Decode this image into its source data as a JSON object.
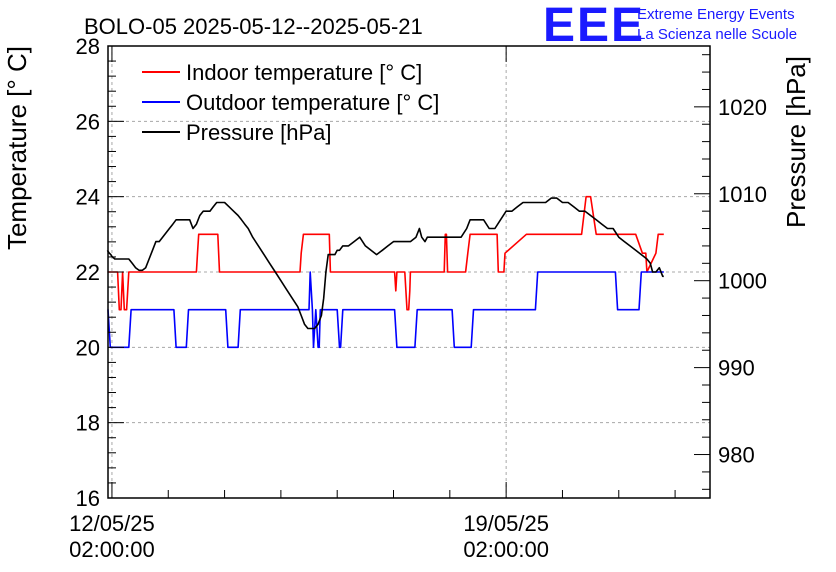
{
  "chart_data": {
    "type": "line",
    "title": "BOLO-05 2025-05-12--2025-05-21",
    "ylabel": "Temperature [° C]",
    "y2label": "Pressure [hPa]",
    "ylim": [
      16,
      28
    ],
    "y2lim": [
      975,
      1027
    ],
    "xlim": [
      -0.07,
      10.62
    ],
    "yticks": [
      "16",
      "18",
      "20",
      "22",
      "24",
      "26",
      "28"
    ],
    "y2ticks": [
      "980",
      "990",
      "1000",
      "1010",
      "1020"
    ],
    "xticks": [
      {
        "date": "12/05/25",
        "time": "02:00:00",
        "value": 0
      },
      {
        "date": "19/05/25",
        "time": "02:00:00",
        "value": 7
      }
    ],
    "grid": true,
    "legend_position": "top-left",
    "logo": {
      "text": "EEE",
      "line1": "Extreme Energy Events",
      "line2": "La Scienza nelle Scuole"
    },
    "series": [
      {
        "name": "Indoor temperature [° C]",
        "color": "#ff0000",
        "axis": "left",
        "x": [
          -0.08,
          0.0,
          0.06,
          0.1,
          0.13,
          0.16,
          0.19,
          0.22,
          0.26,
          0.3,
          0.32,
          1.5,
          1.52,
          1.54,
          1.86,
          1.88,
          1.91,
          1.92,
          3.34,
          3.36,
          3.4,
          3.42,
          3.82,
          3.86,
          3.88,
          5.02,
          5.04,
          5.06,
          5.2,
          5.22,
          5.24,
          5.27,
          5.29,
          5.3,
          5.31,
          5.9,
          5.92,
          5.94,
          5.96,
          5.98,
          6.28,
          6.32,
          6.36,
          6.38,
          6.8,
          6.84,
          6.86,
          6.96,
          6.98,
          7.36,
          7.38,
          8.32,
          8.34,
          8.42,
          8.44,
          8.5,
          8.55,
          8.6,
          8.62,
          9.06,
          9.1,
          9.14,
          9.18,
          9.22,
          9.26,
          9.3,
          9.42,
          9.48,
          9.5,
          9.66,
          9.7,
          9.72,
          9.8
        ],
        "values": [
          22,
          22,
          22,
          22,
          21,
          21,
          22,
          21,
          21,
          22,
          22,
          22,
          22.5,
          23,
          23,
          23,
          22,
          22,
          22,
          22.5,
          23,
          23,
          23,
          23,
          22,
          22,
          21.5,
          22,
          22,
          21.5,
          21,
          21,
          21.5,
          22,
          22,
          22,
          23,
          23,
          22,
          22,
          22,
          22.5,
          23,
          23,
          23,
          23,
          22,
          22,
          22.5,
          23,
          23,
          23,
          23,
          24,
          24,
          24,
          23.5,
          23,
          23,
          23,
          23,
          23,
          23,
          23,
          23,
          23,
          22.5,
          22.5,
          22,
          22.5,
          23,
          23,
          23
        ]
      },
      {
        "name": "Outdoor temperature [° C]",
        "color": "#0000ff",
        "axis": "left",
        "x": [
          -0.08,
          -0.07,
          -0.03,
          0.3,
          0.34,
          0.38,
          1.1,
          1.14,
          1.32,
          1.36,
          2.02,
          2.06,
          2.24,
          2.28,
          3.5,
          3.52,
          3.56,
          3.58,
          3.62,
          3.66,
          3.68,
          3.7,
          4.0,
          4.04,
          4.06,
          4.1,
          5.02,
          5.06,
          5.38,
          5.42,
          6.04,
          6.08,
          6.38,
          6.42,
          7.52,
          7.56,
          8.94,
          8.98,
          9.36,
          9.4,
          9.7,
          9.74,
          9.8
        ],
        "values": [
          21,
          21,
          20,
          20,
          21,
          21,
          21,
          20,
          20,
          21,
          21,
          20,
          20,
          21,
          21,
          22,
          21,
          20,
          21,
          20,
          20,
          21,
          21,
          20,
          20,
          21,
          21,
          20,
          20,
          21,
          21,
          20,
          20,
          21,
          21,
          22,
          22,
          21,
          21,
          22,
          22,
          22,
          22
        ]
      },
      {
        "name": "Pressure [hPa]",
        "color": "#000000",
        "axis": "right",
        "x": [
          -0.08,
          -0.05,
          -0.02,
          0.0,
          0.05,
          0.1,
          0.2,
          0.3,
          0.36,
          0.42,
          0.48,
          0.54,
          0.6,
          0.66,
          0.72,
          0.78,
          0.84,
          0.9,
          0.96,
          1.02,
          1.08,
          1.14,
          1.2,
          1.26,
          1.32,
          1.38,
          1.44,
          1.5,
          1.56,
          1.62,
          1.68,
          1.74,
          1.8,
          1.86,
          1.92,
          2.0,
          2.08,
          2.16,
          2.24,
          2.3,
          2.36,
          2.42,
          2.5,
          2.6,
          2.7,
          2.8,
          2.9,
          3.0,
          3.1,
          3.2,
          3.3,
          3.36,
          3.42,
          3.48,
          3.54,
          3.6,
          3.66,
          3.72,
          3.76,
          3.8,
          3.84,
          3.88,
          3.92,
          3.96,
          4.0,
          4.04,
          4.1,
          4.2,
          4.3,
          4.4,
          4.5,
          4.6,
          4.7,
          4.8,
          4.9,
          5.0,
          5.1,
          5.2,
          5.3,
          5.4,
          5.46,
          5.5,
          5.56,
          5.6,
          5.7,
          5.8,
          5.9,
          6.0,
          6.1,
          6.2,
          6.3,
          6.36,
          6.42,
          6.5,
          6.6,
          6.7,
          6.8,
          6.9,
          7.0,
          7.1,
          7.2,
          7.3,
          7.4,
          7.5,
          7.6,
          7.7,
          7.8,
          7.9,
          8.0,
          8.1,
          8.2,
          8.3,
          8.4,
          8.5,
          8.6,
          8.7,
          8.8,
          8.9,
          9.0,
          9.1,
          9.2,
          9.3,
          9.4,
          9.5,
          9.56,
          9.6,
          9.66,
          9.72,
          9.78,
          9.8
        ],
        "values": [
          1003.5,
          1003.2,
          1003.0,
          1002.8,
          1002.5,
          1002.5,
          1002.5,
          1002.5,
          1002.0,
          1001.5,
          1001.2,
          1001.2,
          1001.5,
          1002.5,
          1003.5,
          1004.5,
          1004.5,
          1005.0,
          1005.5,
          1006.0,
          1006.5,
          1007.0,
          1007.0,
          1007.0,
          1007.0,
          1007.0,
          1006.0,
          1006.5,
          1007.5,
          1008.0,
          1008.0,
          1008.0,
          1008.5,
          1009.0,
          1009.0,
          1009.0,
          1008.5,
          1008.0,
          1007.5,
          1007.0,
          1006.5,
          1006.0,
          1005.0,
          1004.0,
          1003.0,
          1002.0,
          1001.0,
          1000.0,
          999.0,
          998.0,
          997.0,
          996.0,
          995.0,
          994.5,
          994.5,
          994.5,
          995.0,
          996.0,
          998.0,
          1001.0,
          1003.0,
          1003.0,
          1003.0,
          1003.0,
          1003.5,
          1003.5,
          1004.0,
          1004.0,
          1004.5,
          1005.0,
          1004.0,
          1003.5,
          1003.0,
          1003.5,
          1004.0,
          1004.5,
          1004.5,
          1004.5,
          1004.5,
          1005.0,
          1006.0,
          1005.0,
          1004.5,
          1005.0,
          1005.0,
          1005.0,
          1005.0,
          1005.0,
          1005.0,
          1005.0,
          1006.0,
          1007.0,
          1007.0,
          1007.0,
          1007.0,
          1006.0,
          1006.0,
          1007.0,
          1008.0,
          1008.0,
          1008.5,
          1009.0,
          1009.0,
          1009.0,
          1009.0,
          1009.0,
          1009.5,
          1009.5,
          1009.0,
          1009.0,
          1008.5,
          1008.0,
          1008.0,
          1007.5,
          1007.0,
          1006.5,
          1006.0,
          1006.0,
          1005.0,
          1004.5,
          1004.0,
          1003.5,
          1003.0,
          1002.5,
          1002.0,
          1001.0,
          1001.0,
          1001.5,
          1000.5,
          1000.5
        ]
      }
    ]
  }
}
